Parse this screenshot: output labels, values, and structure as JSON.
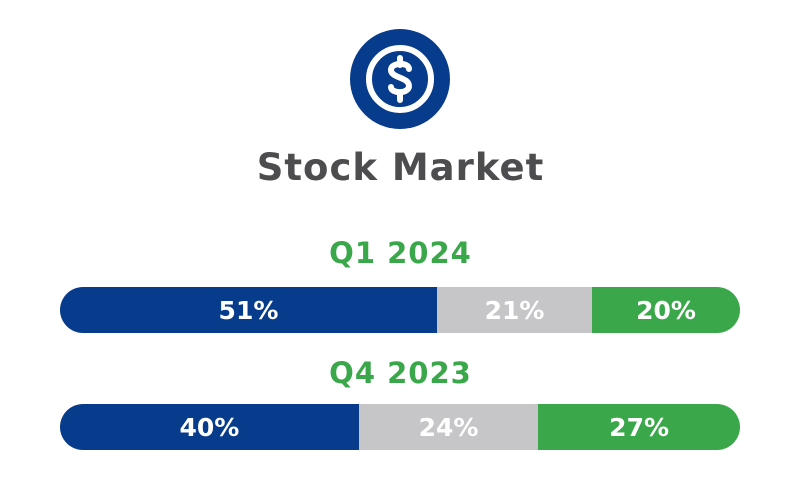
{
  "title": "Stock Market",
  "icon": "dollar-coin-icon",
  "colors": {
    "title": "#4d4d4f",
    "period_label": "#3aa84a",
    "icon": "#073b8c",
    "series_1": "#073b8c",
    "series_2": "#c6c6c9",
    "series_3": "#3aa84a"
  },
  "chart_data": {
    "type": "bar",
    "orientation": "horizontal",
    "stacked": true,
    "categories": [
      "Q1 2024",
      "Q4 2023"
    ],
    "series": [
      {
        "values": [
          51,
          40
        ],
        "labels": [
          "51%",
          "40%"
        ]
      },
      {
        "values": [
          21,
          24
        ],
        "labels": [
          "21%",
          "24%"
        ]
      },
      {
        "values": [
          20,
          27
        ],
        "labels": [
          "20%",
          "27%"
        ]
      }
    ],
    "xlabel": "",
    "ylabel": "",
    "grid": false,
    "legend": "none"
  }
}
